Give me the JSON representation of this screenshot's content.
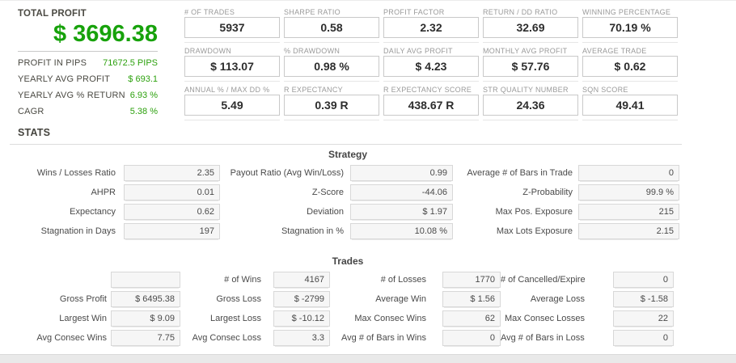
{
  "summary": {
    "title": "TOTAL PROFIT",
    "total_profit": "$ 3696.38",
    "rows": [
      {
        "label": "PROFIT IN PIPS",
        "value": "71672.5 PIPS"
      },
      {
        "label": "YEARLY AVG PROFIT",
        "value": "$ 693.1"
      },
      {
        "label": "YEARLY AVG % RETURN",
        "value": "6.93 %"
      },
      {
        "label": "CAGR",
        "value": "5.38 %"
      }
    ]
  },
  "colors": {
    "profit_green": "#17a20b",
    "value_green": "#2da10e",
    "metric_text": "#2d2d2d",
    "label_gray": "#9a9a9a"
  },
  "metrics": [
    {
      "label": "# OF TRADES",
      "value": "5937"
    },
    {
      "label": "SHARPE RATIO",
      "value": "0.58"
    },
    {
      "label": "PROFIT FACTOR",
      "value": "2.32"
    },
    {
      "label": "RETURN / DD RATIO",
      "value": "32.69"
    },
    {
      "label": "WINNING PERCENTAGE",
      "value": "70.19 %"
    },
    {
      "label": "DRAWDOWN",
      "value": "$ 113.07"
    },
    {
      "label": "% DRAWDOWN",
      "value": "0.98 %"
    },
    {
      "label": "DAILY AVG PROFIT",
      "value": "$ 4.23"
    },
    {
      "label": "MONTHLY AVG PROFIT",
      "value": "$ 57.76"
    },
    {
      "label": "AVERAGE TRADE",
      "value": "$ 0.62"
    },
    {
      "label": "ANNUAL % / MAX DD %",
      "value": "5.49"
    },
    {
      "label": "R EXPECTANCY",
      "value": "0.39 R"
    },
    {
      "label": "R EXPECTANCY SCORE",
      "value": "438.67 R"
    },
    {
      "label": "STR QUALITY NUMBER",
      "value": "24.36"
    },
    {
      "label": "SQN SCORE",
      "value": "49.41"
    }
  ],
  "stats": {
    "header": "STATS",
    "strategy": {
      "title": "Strategy",
      "rows": [
        [
          {
            "label": "Wins / Losses Ratio",
            "value": "2.35"
          },
          {
            "label": "Payout Ratio (Avg Win/Loss)",
            "value": "0.99"
          },
          {
            "label": "Average # of Bars in Trade",
            "value": "0"
          }
        ],
        [
          {
            "label": "AHPR",
            "value": "0.01"
          },
          {
            "label": "Z-Score",
            "value": "-44.06"
          },
          {
            "label": "Z-Probability",
            "value": "99.9 %"
          }
        ],
        [
          {
            "label": "Expectancy",
            "value": "0.62"
          },
          {
            "label": "Deviation",
            "value": "$ 1.97"
          },
          {
            "label": "Max Pos. Exposure",
            "value": "215"
          }
        ],
        [
          {
            "label": "Stagnation in Days",
            "value": "197"
          },
          {
            "label": "Stagnation in %",
            "value": "10.08 %"
          },
          {
            "label": "Max Lots Exposure",
            "value": "2.15"
          }
        ]
      ]
    },
    "trades": {
      "title": "Trades",
      "rows": [
        [
          {
            "label": "",
            "value": ""
          },
          {
            "label": "# of Wins",
            "value": "4167"
          },
          {
            "label": "# of Losses",
            "value": "1770"
          },
          {
            "label": "# of Cancelled/Expired",
            "value": "0"
          }
        ],
        [
          {
            "label": "Gross Profit",
            "value": "$ 6495.38"
          },
          {
            "label": "Gross Loss",
            "value": "$ -2799"
          },
          {
            "label": "Average Win",
            "value": "$ 1.56"
          },
          {
            "label": "Average Loss",
            "value": "$ -1.58"
          }
        ],
        [
          {
            "label": "Largest Win",
            "value": "$ 9.09"
          },
          {
            "label": "Largest Loss",
            "value": "$ -10.12"
          },
          {
            "label": "Max Consec Wins",
            "value": "62"
          },
          {
            "label": "Max Consec Losses",
            "value": "22"
          }
        ],
        [
          {
            "label": "Avg Consec Wins",
            "value": "7.75"
          },
          {
            "label": "Avg Consec Loss",
            "value": "3.3"
          },
          {
            "label": "Avg # of Bars in Wins",
            "value": "0"
          },
          {
            "label": "Avg # of Bars in Losses",
            "value": "0"
          }
        ]
      ]
    }
  }
}
